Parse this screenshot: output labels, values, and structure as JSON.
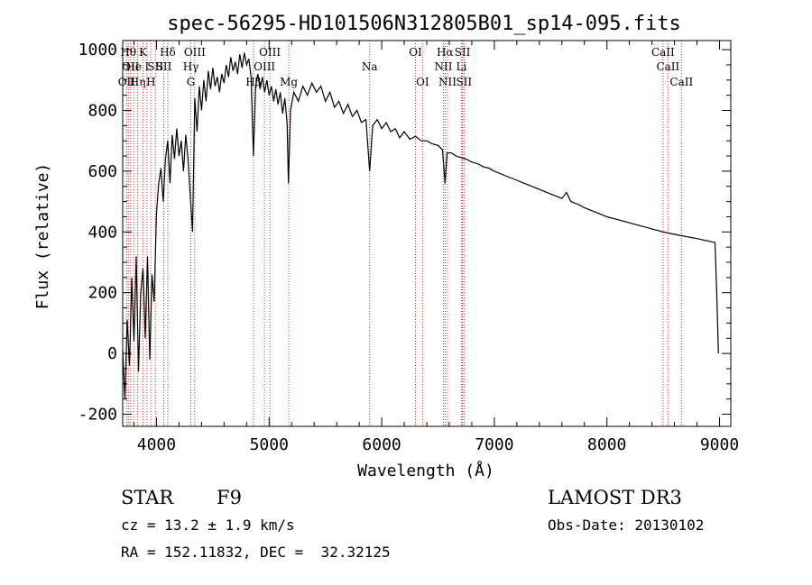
{
  "chart_data": {
    "type": "line",
    "title": "spec-56295-HD101506N312805B01_sp14-095.fits",
    "xlabel": "Wavelength (Å)",
    "ylabel": "Flux (relative)",
    "xlim": [
      3700,
      9100
    ],
    "ylim": [
      -240,
      1030
    ],
    "xticks": [
      4000,
      5000,
      6000,
      7000,
      8000,
      9000
    ],
    "yticks": [
      -200,
      0,
      200,
      400,
      600,
      800,
      1000
    ],
    "line_color": "#000000",
    "marker_color": "#cc3333",
    "series": [
      {
        "points": [
          [
            3700,
            10
          ],
          [
            3720,
            -150
          ],
          [
            3740,
            110
          ],
          [
            3760,
            -40
          ],
          [
            3780,
            250
          ],
          [
            3800,
            40
          ],
          [
            3820,
            320
          ],
          [
            3840,
            -60
          ],
          [
            3860,
            200
          ],
          [
            3880,
            280
          ],
          [
            3900,
            50
          ],
          [
            3920,
            320
          ],
          [
            3940,
            -20
          ],
          [
            3960,
            260
          ],
          [
            3980,
            170
          ],
          [
            4000,
            460
          ],
          [
            4020,
            560
          ],
          [
            4040,
            610
          ],
          [
            4060,
            500
          ],
          [
            4080,
            640
          ],
          [
            4100,
            700
          ],
          [
            4120,
            560
          ],
          [
            4140,
            720
          ],
          [
            4160,
            640
          ],
          [
            4180,
            740
          ],
          [
            4200,
            650
          ],
          [
            4220,
            700
          ],
          [
            4240,
            600
          ],
          [
            4260,
            720
          ],
          [
            4280,
            640
          ],
          [
            4300,
            520
          ],
          [
            4320,
            400
          ],
          [
            4340,
            840
          ],
          [
            4360,
            730
          ],
          [
            4380,
            880
          ],
          [
            4400,
            800
          ],
          [
            4420,
            900
          ],
          [
            4440,
            830
          ],
          [
            4460,
            930
          ],
          [
            4480,
            870
          ],
          [
            4500,
            940
          ],
          [
            4520,
            880
          ],
          [
            4540,
            910
          ],
          [
            4560,
            860
          ],
          [
            4580,
            920
          ],
          [
            4600,
            890
          ],
          [
            4620,
            950
          ],
          [
            4640,
            910
          ],
          [
            4660,
            975
          ],
          [
            4680,
            930
          ],
          [
            4700,
            960
          ],
          [
            4720,
            920
          ],
          [
            4740,
            985
          ],
          [
            4760,
            940
          ],
          [
            4780,
            990
          ],
          [
            4800,
            950
          ],
          [
            4820,
            970
          ],
          [
            4840,
            910
          ],
          [
            4861,
            650
          ],
          [
            4880,
            880
          ],
          [
            4900,
            920
          ],
          [
            4920,
            870
          ],
          [
            4940,
            910
          ],
          [
            4960,
            860
          ],
          [
            4980,
            900
          ],
          [
            5000,
            850
          ],
          [
            5020,
            880
          ],
          [
            5040,
            830
          ],
          [
            5060,
            870
          ],
          [
            5080,
            820
          ],
          [
            5100,
            860
          ],
          [
            5120,
            790
          ],
          [
            5140,
            840
          ],
          [
            5160,
            760
          ],
          [
            5172,
            560
          ],
          [
            5190,
            800
          ],
          [
            5220,
            860
          ],
          [
            5260,
            830
          ],
          [
            5300,
            880
          ],
          [
            5340,
            850
          ],
          [
            5380,
            890
          ],
          [
            5420,
            860
          ],
          [
            5460,
            880
          ],
          [
            5500,
            830
          ],
          [
            5540,
            860
          ],
          [
            5580,
            810
          ],
          [
            5620,
            830
          ],
          [
            5660,
            790
          ],
          [
            5700,
            820
          ],
          [
            5740,
            780
          ],
          [
            5780,
            800
          ],
          [
            5820,
            760
          ],
          [
            5860,
            770
          ],
          [
            5893,
            600
          ],
          [
            5920,
            750
          ],
          [
            5960,
            770
          ],
          [
            6000,
            740
          ],
          [
            6040,
            760
          ],
          [
            6080,
            730
          ],
          [
            6120,
            740
          ],
          [
            6160,
            710
          ],
          [
            6200,
            730
          ],
          [
            6250,
            705
          ],
          [
            6300,
            715
          ],
          [
            6350,
            700
          ],
          [
            6400,
            700
          ],
          [
            6450,
            690
          ],
          [
            6500,
            685
          ],
          [
            6540,
            670
          ],
          [
            6563,
            560
          ],
          [
            6580,
            660
          ],
          [
            6620,
            660
          ],
          [
            6660,
            650
          ],
          [
            6700,
            645
          ],
          [
            6750,
            640
          ],
          [
            6800,
            630
          ],
          [
            6850,
            625
          ],
          [
            6900,
            615
          ],
          [
            6950,
            610
          ],
          [
            7000,
            600
          ],
          [
            7100,
            585
          ],
          [
            7200,
            570
          ],
          [
            7300,
            555
          ],
          [
            7400,
            540
          ],
          [
            7500,
            525
          ],
          [
            7600,
            510
          ],
          [
            7640,
            530
          ],
          [
            7680,
            500
          ],
          [
            7750,
            490
          ],
          [
            7800,
            480
          ],
          [
            7900,
            465
          ],
          [
            8000,
            450
          ],
          [
            8100,
            440
          ],
          [
            8200,
            430
          ],
          [
            8300,
            420
          ],
          [
            8400,
            410
          ],
          [
            8500,
            400
          ],
          [
            8600,
            392
          ],
          [
            8700,
            385
          ],
          [
            8800,
            378
          ],
          [
            8900,
            370
          ],
          [
            8960,
            365
          ],
          [
            8975,
            200
          ],
          [
            8990,
            0
          ]
        ]
      }
    ],
    "lines": [
      {
        "w": 3750,
        "label": "Hθ",
        "row": 1
      },
      {
        "w": 3770,
        "label": "OII",
        "row": 2
      },
      {
        "w": 3735,
        "label": "OII",
        "row": 3
      },
      {
        "w": 3798,
        "label": "He",
        "row": 2
      },
      {
        "w": 3833,
        "label": "Hη",
        "row": 3
      },
      {
        "w": 3880,
        "label": "K",
        "row": 1
      },
      {
        "w": 3915,
        "label": "I",
        "row": 2
      },
      {
        "w": 3950,
        "label": "H",
        "row": 3
      },
      {
        "w": 3990,
        "label": "SII",
        "row": 2
      },
      {
        "w": 4100,
        "label": "Hδ",
        "row": 1
      },
      {
        "w": 4065,
        "label": "SII",
        "row": 2
      },
      {
        "w": 4340,
        "label": "OIII",
        "row": 1
      },
      {
        "w": 4305,
        "label": "Hγ",
        "row": 2
      },
      {
        "w": 4305,
        "label": "G",
        "row": 3
      },
      {
        "w": 4861,
        "label": "Hβ",
        "row": 3
      },
      {
        "w": 5007,
        "label": "OIII",
        "row": 1
      },
      {
        "w": 4959,
        "label": "OIII",
        "row": 2
      },
      {
        "w": 5175,
        "label": "Mg",
        "row": 3
      },
      {
        "w": 5893,
        "label": "Na",
        "row": 2
      },
      {
        "w": 6300,
        "label": "OI",
        "row": 1
      },
      {
        "w": 6363,
        "label": "OI",
        "row": 3
      },
      {
        "w": 6563,
        "label": "Hα",
        "row": 1
      },
      {
        "w": 6548,
        "label": "NII",
        "row": 2
      },
      {
        "w": 6584,
        "label": "NII",
        "row": 3
      },
      {
        "w": 6717,
        "label": "SII",
        "row": 1
      },
      {
        "w": 6708,
        "label": "Li",
        "row": 2
      },
      {
        "w": 6731,
        "label": "SII",
        "row": 3
      },
      {
        "w": 8498,
        "label": "CaII",
        "row": 1
      },
      {
        "w": 8542,
        "label": "CaII",
        "row": 2
      },
      {
        "w": 8662,
        "label": "CaII",
        "row": 3
      }
    ]
  },
  "info": {
    "object_class": "STAR",
    "subclass": "F9",
    "survey": "LAMOST DR3",
    "cz": "cz = 13.2 ± 1.9 km/s",
    "obs_date": "Obs-Date: 20130102",
    "coords": "RA = 152.11832, DEC =  32.32125"
  }
}
